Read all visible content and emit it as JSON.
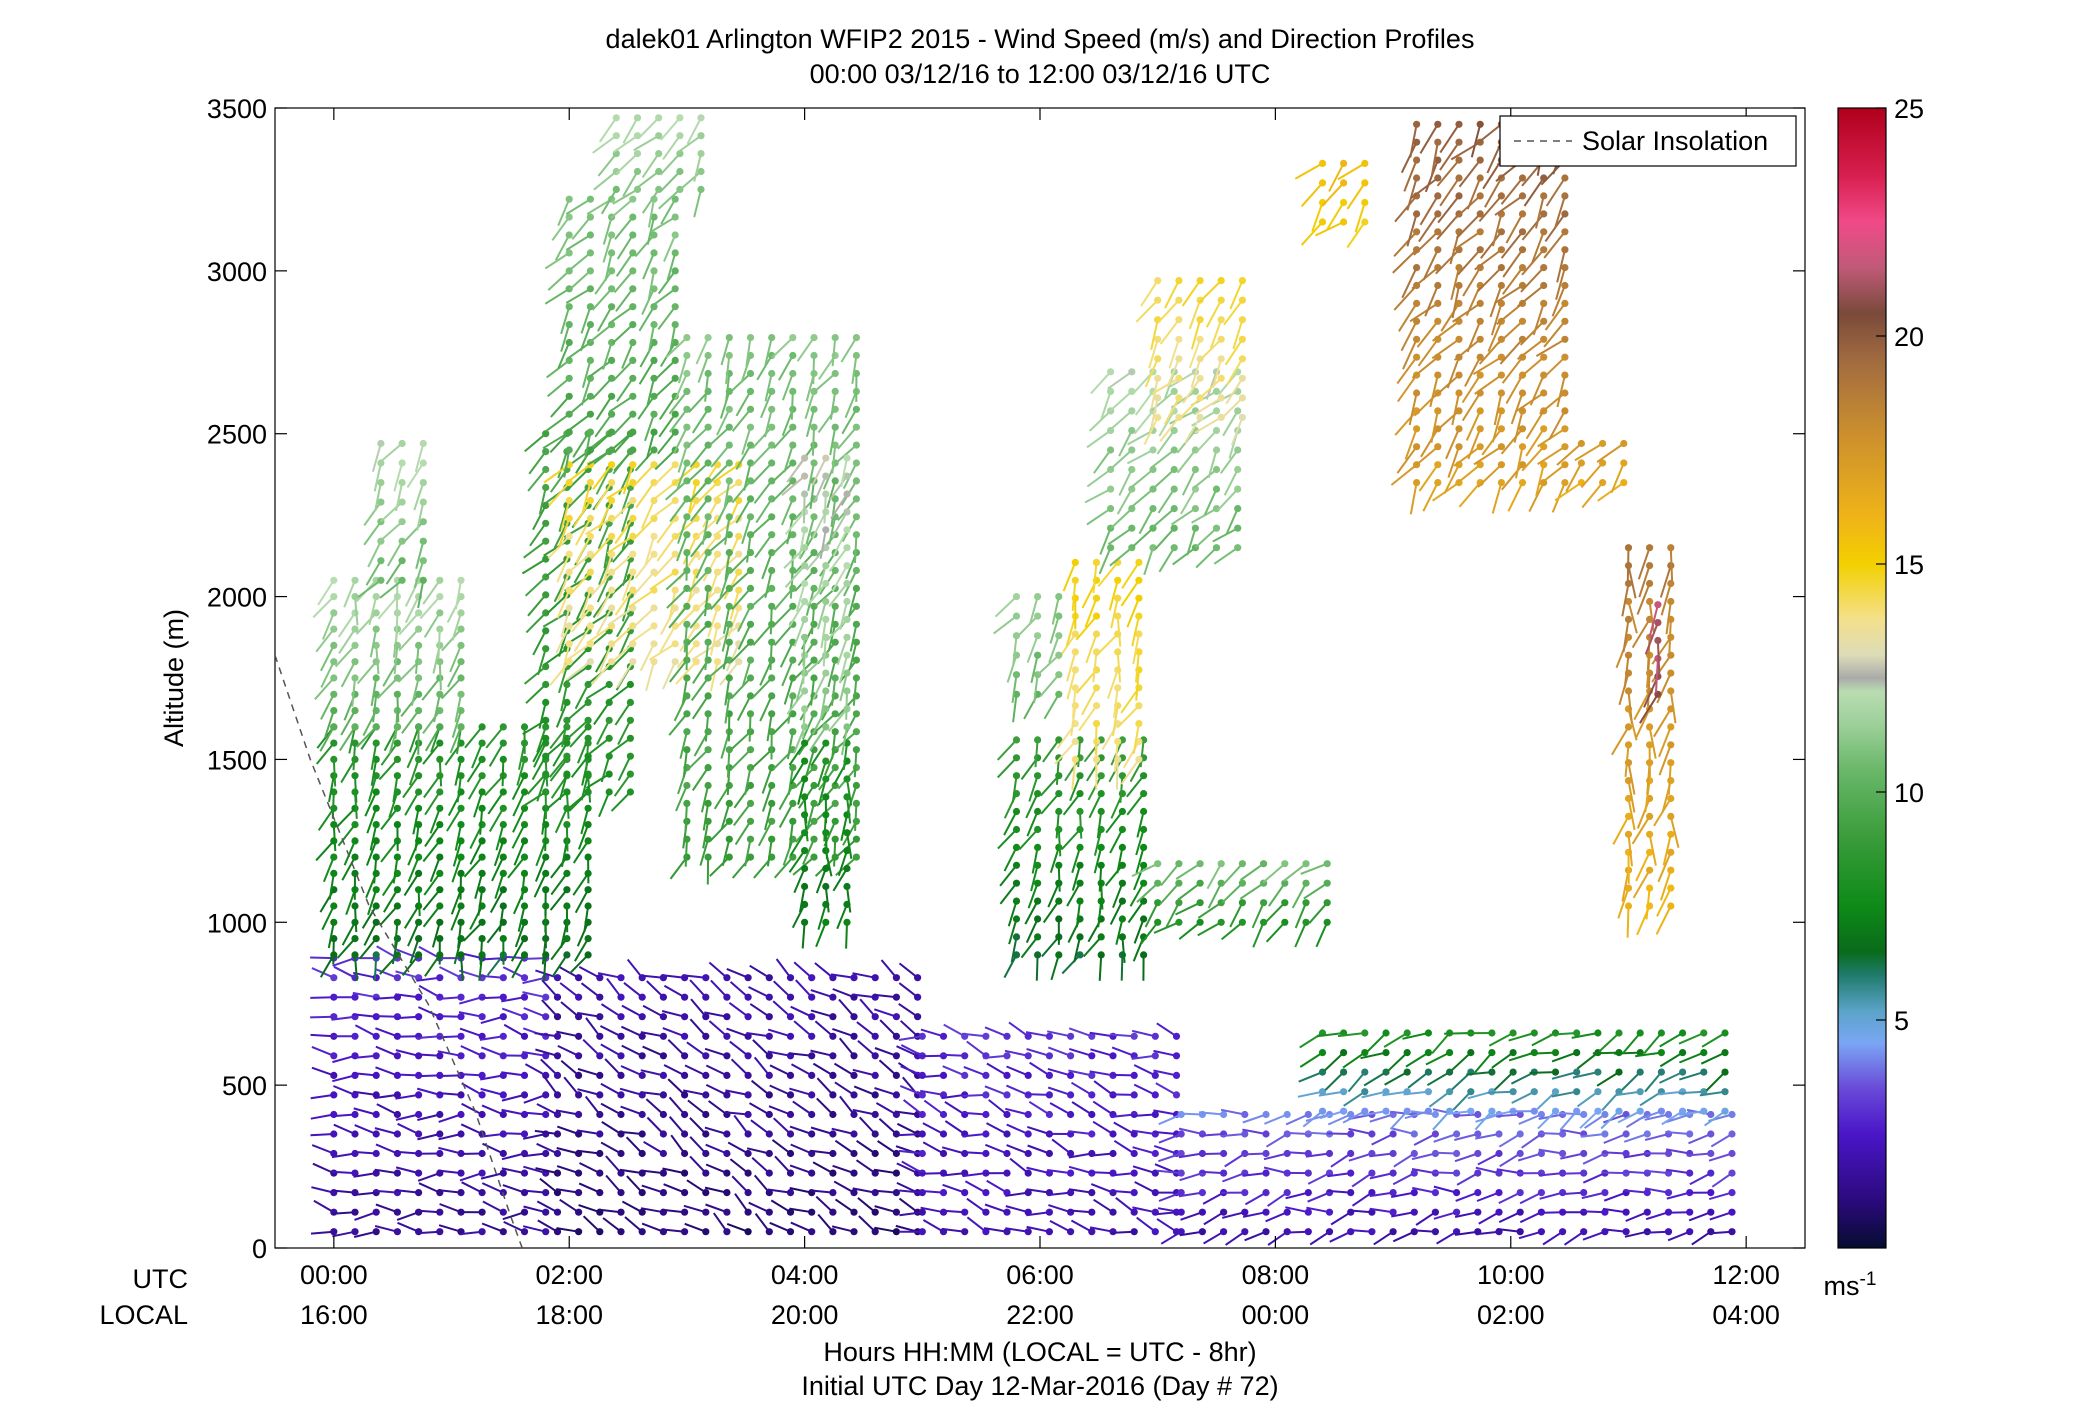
{
  "chart_data": {
    "type": "wind-barb-profile",
    "title": "dalek01 Arlington WFIP2 2015 - Wind Speed (m/s) and Direction Profiles",
    "subtitle": "00:00 03/12/16 to 12:00 03/12/16  UTC",
    "ylabel": "Altitude (m)",
    "xlabel": "Hours HH:MM  (LOCAL = UTC - 8hr)",
    "xlabel2": "Initial UTC Day 12-Mar-2016 (Day # 72)",
    "x_row_label_utc": "UTC",
    "x_row_label_local": "LOCAL",
    "xlim_hours_utc": [
      -0.5,
      12.5
    ],
    "ylim": [
      0,
      3500
    ],
    "y_ticks": [
      0,
      500,
      1000,
      1500,
      2000,
      2500,
      3000,
      3500
    ],
    "x_ticks_utc_hours": [
      0,
      2,
      4,
      6,
      8,
      10,
      12
    ],
    "x_tick_labels_utc": [
      "00:00",
      "02:00",
      "04:00",
      "06:00",
      "08:00",
      "10:00",
      "12:00"
    ],
    "x_tick_labels_local": [
      "16:00",
      "18:00",
      "20:00",
      "22:00",
      "00:00",
      "02:00",
      "04:00"
    ],
    "legend": {
      "entries": [
        "Solar Insolation"
      ],
      "position": "top-right",
      "line_style": "dashed"
    },
    "colorbar": {
      "min": 0,
      "max": 25,
      "ticks": [
        5,
        10,
        15,
        20,
        25
      ],
      "unit_label": "ms",
      "unit_exponent": "-1",
      "stops": [
        {
          "v": 0,
          "c": "#050c30"
        },
        {
          "v": 1,
          "c": "#2a0a7a"
        },
        {
          "v": 2.5,
          "c": "#4a16c8"
        },
        {
          "v": 3.5,
          "c": "#6a4ad8"
        },
        {
          "v": 4.5,
          "c": "#7aa6f4"
        },
        {
          "v": 5.2,
          "c": "#5aa3c8"
        },
        {
          "v": 6,
          "c": "#1f7a6a"
        },
        {
          "v": 6.5,
          "c": "#0a6b1a"
        },
        {
          "v": 7.5,
          "c": "#0e8a18"
        },
        {
          "v": 9,
          "c": "#3a9c3a"
        },
        {
          "v": 10.5,
          "c": "#6ab86a"
        },
        {
          "v": 11.5,
          "c": "#9ed09a"
        },
        {
          "v": 12.2,
          "c": "#b8ddb0"
        },
        {
          "v": 12.5,
          "c": "#aaaaaa"
        },
        {
          "v": 13.0,
          "c": "#dcdcb8"
        },
        {
          "v": 13.8,
          "c": "#f4e08a"
        },
        {
          "v": 15,
          "c": "#f2d000"
        },
        {
          "v": 16,
          "c": "#f0b418"
        },
        {
          "v": 18,
          "c": "#c88c30"
        },
        {
          "v": 19.5,
          "c": "#a06a40"
        },
        {
          "v": 20.5,
          "c": "#7a4a3a"
        },
        {
          "v": 21.5,
          "c": "#c05a78"
        },
        {
          "v": 22.5,
          "c": "#f04a88"
        },
        {
          "v": 23.5,
          "c": "#d82050"
        },
        {
          "v": 25,
          "c": "#b0001c"
        }
      ]
    },
    "solar_insolation_line": [
      [
        -0.5,
        1820
      ],
      [
        -0.2,
        1500
      ],
      [
        0.3,
        1050
      ],
      [
        0.8,
        750
      ],
      [
        1.2,
        420
      ],
      [
        1.5,
        100
      ],
      [
        1.6,
        0
      ]
    ],
    "time_step_hours": 0.18,
    "segments": [
      {
        "t0": 0.0,
        "t1": 1.9,
        "z0": 50,
        "z1": 900,
        "speed0": 1.5,
        "speed1": 3.0,
        "dir": 275,
        "dz": 60
      },
      {
        "t0": 1.9,
        "t1": 5.0,
        "z0": 50,
        "z1": 850,
        "speed0": 1.0,
        "speed1": 2.0,
        "dir": 300,
        "dz": 60
      },
      {
        "t0": 5.0,
        "t1": 7.2,
        "z0": 50,
        "z1": 700,
        "speed0": 2.0,
        "speed1": 3.0,
        "dir": 285,
        "dz": 60
      },
      {
        "t0": 7.2,
        "t1": 11.9,
        "z0": 50,
        "z1": 420,
        "speed0": 2.0,
        "speed1": 4.0,
        "dir": 260,
        "dz": 60
      },
      {
        "t0": 8.4,
        "t1": 11.9,
        "z0": 420,
        "z1": 700,
        "speed0": 4.5,
        "speed1": 8.5,
        "dir": 245,
        "dz": 60
      },
      {
        "t0": 0.0,
        "t1": 2.2,
        "z0": 900,
        "z1": 1600,
        "speed0": 6.5,
        "speed1": 8.5,
        "dir": 200,
        "dz": 50
      },
      {
        "t0": 0.0,
        "t1": 1.2,
        "z0": 1600,
        "z1": 2050,
        "speed0": 10.0,
        "speed1": 12.0,
        "dir": 200,
        "dz": 50
      },
      {
        "t0": 0.4,
        "t1": 0.9,
        "z0": 2050,
        "z1": 2480,
        "speed0": 10.5,
        "speed1": 12.0,
        "dir": 215,
        "dz": 60
      },
      {
        "t0": 1.8,
        "t1": 2.6,
        "z0": 1400,
        "z1": 2500,
        "speed0": 8.0,
        "speed1": 9.5,
        "dir": 215,
        "dz": 55
      },
      {
        "t0": 2.0,
        "t1": 3.6,
        "z0": 1800,
        "z1": 2450,
        "speed0": 13.5,
        "speed1": 14.5,
        "dir": 215,
        "dz": 55
      },
      {
        "t0": 2.0,
        "t1": 3.0,
        "z0": 2450,
        "z1": 3250,
        "speed0": 9.5,
        "speed1": 11.0,
        "dir": 215,
        "dz": 55
      },
      {
        "t0": 2.4,
        "t1": 3.2,
        "z0": 3250,
        "z1": 3480,
        "speed0": 11.0,
        "speed1": 12.0,
        "dir": 215,
        "dz": 55
      },
      {
        "t0": 3.0,
        "t1": 4.5,
        "z0": 1200,
        "z1": 2800,
        "speed0": 9.0,
        "speed1": 11.0,
        "dir": 205,
        "dz": 55
      },
      {
        "t0": 4.0,
        "t1": 4.5,
        "z0": 1000,
        "z1": 1600,
        "speed0": 7.0,
        "speed1": 8.0,
        "dir": 190,
        "dz": 55
      },
      {
        "t0": 4.0,
        "t1": 4.5,
        "z0": 1600,
        "z1": 2450,
        "speed0": 11.0,
        "speed1": 12.5,
        "dir": 205,
        "dz": 55
      },
      {
        "t0": 5.8,
        "t1": 7.0,
        "z0": 900,
        "z1": 1600,
        "speed0": 6.5,
        "speed1": 9.0,
        "dir": 200,
        "dz": 55
      },
      {
        "t0": 6.3,
        "t1": 7.0,
        "z0": 1500,
        "z1": 2150,
        "speed0": 13.8,
        "speed1": 15.0,
        "dir": 200,
        "dz": 55
      },
      {
        "t0": 5.8,
        "t1": 6.3,
        "z0": 1700,
        "z1": 2050,
        "speed0": 10.5,
        "speed1": 11.5,
        "dir": 210,
        "dz": 60
      },
      {
        "t0": 6.6,
        "t1": 7.8,
        "z0": 2150,
        "z1": 2700,
        "speed0": 10.5,
        "speed1": 12.0,
        "dir": 220,
        "dz": 60
      },
      {
        "t0": 7.0,
        "t1": 7.8,
        "z0": 2550,
        "z1": 3000,
        "speed0": 13.5,
        "speed1": 14.5,
        "dir": 215,
        "dz": 60
      },
      {
        "t0": 7.0,
        "t1": 8.5,
        "z0": 1000,
        "z1": 1200,
        "speed0": 8.0,
        "speed1": 11.0,
        "dir": 225,
        "dz": 60
      },
      {
        "t0": 8.4,
        "t1": 8.9,
        "z0": 3150,
        "z1": 3380,
        "speed0": 15.0,
        "speed1": 16.0,
        "dir": 220,
        "dz": 60
      },
      {
        "t0": 9.2,
        "t1": 10.6,
        "z0": 2350,
        "z1": 3480,
        "speed0": 17.0,
        "speed1": 20.0,
        "dir": 215,
        "dz": 55
      },
      {
        "t0": 10.6,
        "t1": 11.0,
        "z0": 2350,
        "z1": 2500,
        "speed0": 16.5,
        "speed1": 17.5,
        "dir": 225,
        "dz": 60
      },
      {
        "t0": 11.0,
        "t1": 11.4,
        "z0": 1050,
        "z1": 2200,
        "speed0": 16.0,
        "speed1": 19.0,
        "dir": 190,
        "dz": 55
      },
      {
        "t0": 11.25,
        "t1": 11.4,
        "z0": 1700,
        "z1": 2000,
        "speed0": 21.0,
        "speed1": 21.5,
        "dir": 190,
        "dz": 55
      }
    ]
  },
  "legend_label": "Solar Insolation"
}
